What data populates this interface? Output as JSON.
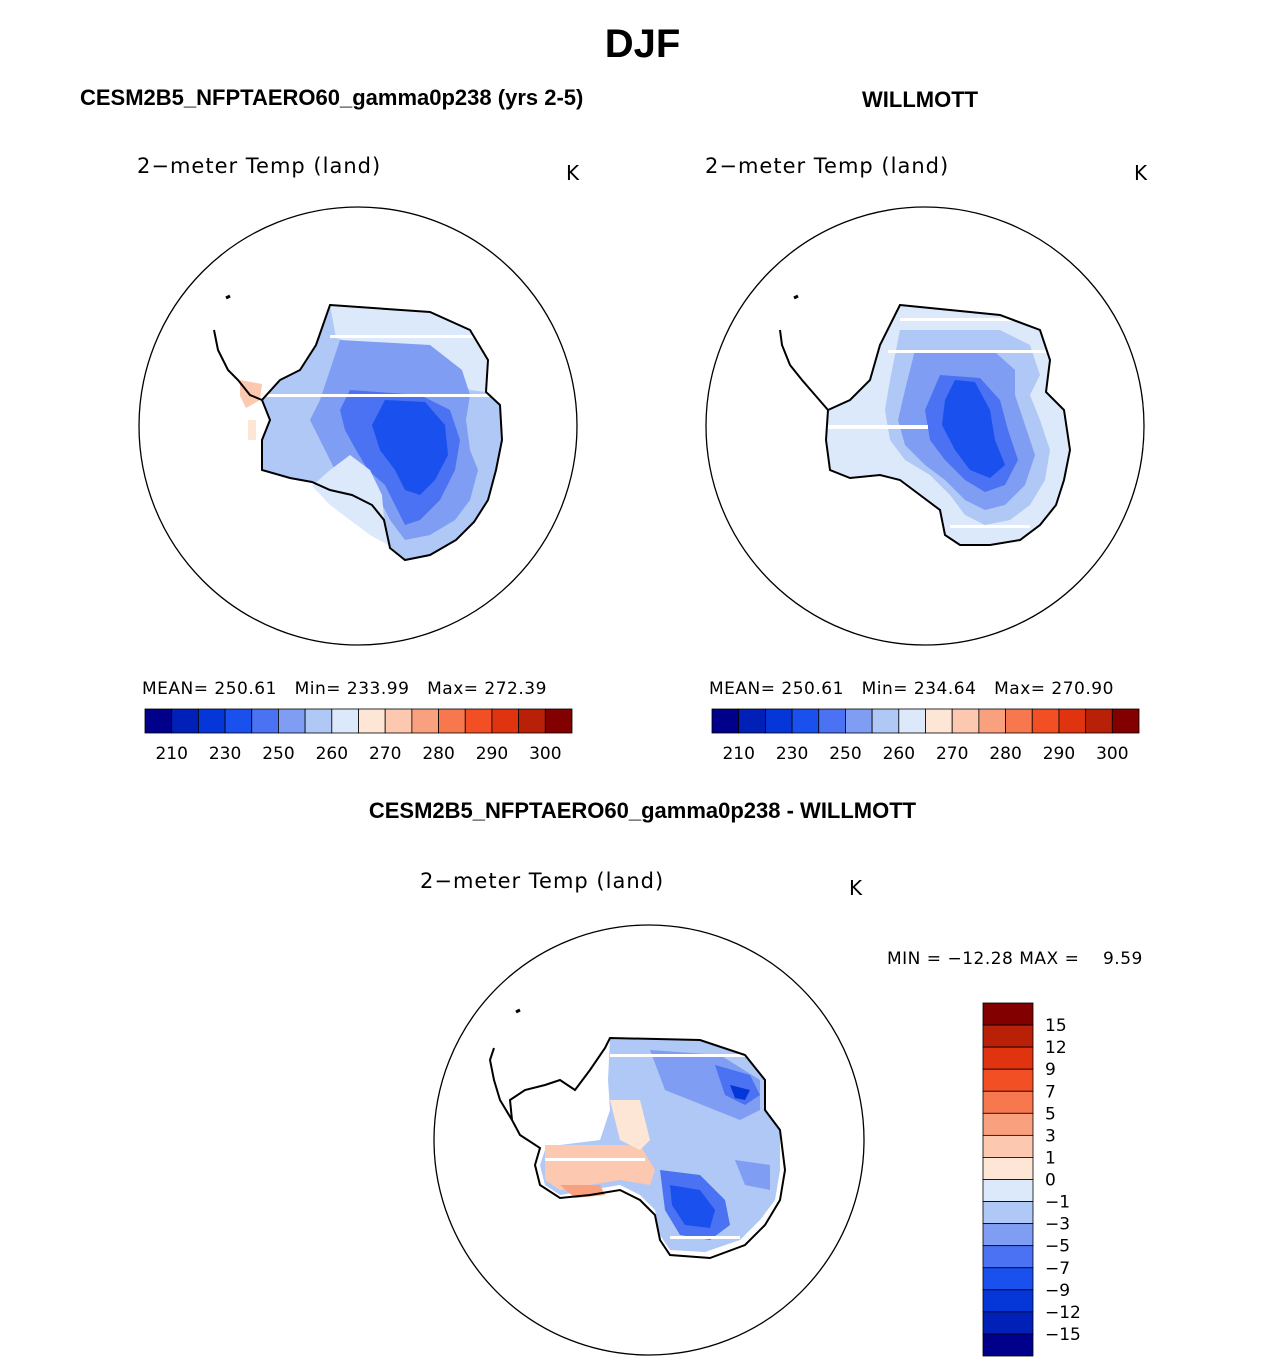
{
  "title": "DJF",
  "panels": {
    "left": {
      "case": "CESM2B5_NFPTAERO60_gamma0p238 (yrs 2-5)",
      "variable": "2−meter Temp (land)",
      "units": "K",
      "stats": {
        "mean": "MEAN= 250.61",
        "min": "Min= 233.99",
        "max": "Max= 272.39"
      }
    },
    "right": {
      "case": "WILLMOTT",
      "variable": "2−meter Temp (land)",
      "units": "K",
      "stats": {
        "mean": "MEAN= 250.61",
        "min": "Min= 234.64",
        "max": "Max= 270.90"
      }
    },
    "diff": {
      "case": "CESM2B5_NFPTAERO60_gamma0p238 - WILLMOTT",
      "variable": "2−meter Temp (land)",
      "units": "K",
      "stats": "MIN = −12.28 MAX =    9.59"
    }
  },
  "abs_colorbar": {
    "colors": [
      "#00008b",
      "#0020b8",
      "#0536d8",
      "#1a50ee",
      "#4a72f2",
      "#7f9df2",
      "#b0c8f6",
      "#dce9fb",
      "#fde6d6",
      "#fcc8b0",
      "#f9a07e",
      "#f7784e",
      "#f25024",
      "#e03410",
      "#b82008",
      "#830000"
    ],
    "tick_labels": [
      "210",
      "230",
      "250",
      "260",
      "270",
      "280",
      "290",
      "300"
    ]
  },
  "diff_colorbar": {
    "colors": [
      "#830000",
      "#b82008",
      "#e03410",
      "#f25024",
      "#f7784e",
      "#f9a07e",
      "#fcc8b0",
      "#fde6d6",
      "#dce9fb",
      "#b0c8f6",
      "#7f9df2",
      "#4a72f2",
      "#1a50ee",
      "#0536d8",
      "#0020b8",
      "#00008b"
    ],
    "tick_labels": [
      "15",
      "12",
      "9",
      "7",
      "5",
      "3",
      "1",
      "0",
      "−1",
      "−3",
      "−5",
      "−7",
      "−9",
      "−12",
      "−15"
    ]
  }
}
